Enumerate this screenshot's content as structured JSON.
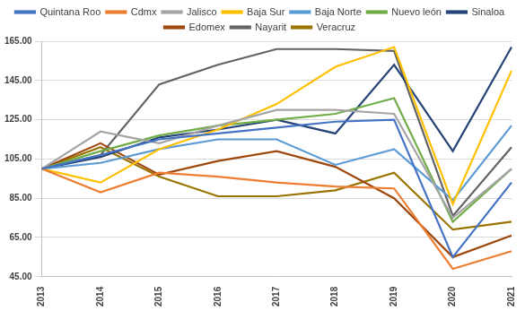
{
  "chart_data": {
    "type": "line",
    "categories": [
      "2013",
      "2014",
      "2015",
      "2016",
      "2017",
      "2018",
      "2019",
      "2020",
      "2021"
    ],
    "series": [
      {
        "name": "Quintana Roo",
        "color": "#4472c4",
        "values": [
          100,
          107,
          115,
          118,
          121,
          124,
          125,
          55,
          93
        ]
      },
      {
        "name": "Cdmx",
        "color": "#ed7d31",
        "values": [
          100,
          88,
          98,
          96,
          93,
          91,
          90,
          49,
          58
        ]
      },
      {
        "name": "Jalisco",
        "color": "#a5a5a5",
        "values": [
          100,
          119,
          113,
          122,
          130,
          130,
          128,
          75,
          100
        ]
      },
      {
        "name": "Baja Sur",
        "color": "#ffc000",
        "values": [
          100,
          93,
          110,
          120,
          133,
          152,
          162,
          82,
          150
        ]
      },
      {
        "name": "Baja Norte",
        "color": "#5b9bd5",
        "values": [
          100,
          103,
          110,
          115,
          115,
          102,
          110,
          84,
          122
        ]
      },
      {
        "name": "Nuevo león",
        "color": "#70ad47",
        "values": [
          100,
          109,
          117,
          122,
          125,
          128,
          136,
          73,
          100
        ]
      },
      {
        "name": "Sinaloa",
        "color": "#264478",
        "values": [
          100,
          106,
          116,
          120,
          125,
          118,
          153,
          109,
          162
        ]
      },
      {
        "name": "Edomex",
        "color": "#9e480e",
        "values": [
          100,
          113,
          97,
          104,
          109,
          101,
          85,
          55,
          66
        ]
      },
      {
        "name": "Nayarit",
        "color": "#636363",
        "values": [
          100,
          107,
          143,
          153,
          161,
          161,
          160,
          76,
          111
        ]
      },
      {
        "name": "Veracruz",
        "color": "#997300",
        "values": [
          100,
          111,
          96,
          86,
          86,
          89,
          98,
          69,
          73
        ]
      }
    ],
    "ylim": [
      45,
      165
    ],
    "yticks": [
      {
        "value": 45,
        "label": "45.00"
      },
      {
        "value": 65,
        "label": "65.00"
      },
      {
        "value": 85,
        "label": "85.00"
      },
      {
        "value": 105,
        "label": "105.00"
      },
      {
        "value": 125,
        "label": "125.00"
      },
      {
        "value": 145,
        "label": "145.00"
      },
      {
        "value": 165,
        "label": "165.00"
      }
    ],
    "grid": true,
    "legend": "top",
    "marker": "none"
  }
}
